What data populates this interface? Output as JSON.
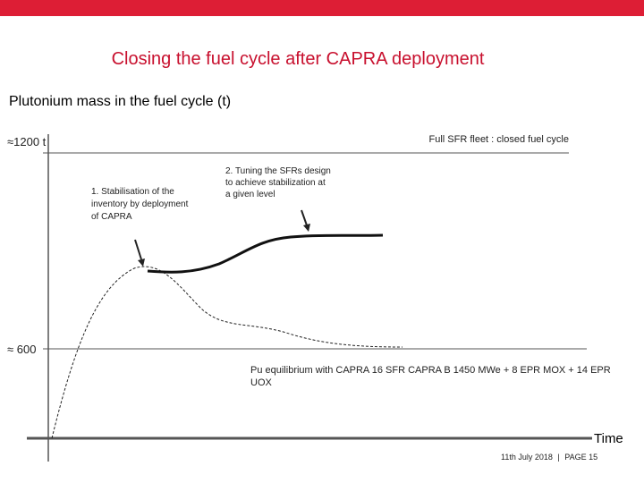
{
  "chart_data": {
    "type": "line",
    "title": "Closing the fuel cycle after CAPRA deployment",
    "ylabel": "Plutonium mass in the fuel cycle (t)",
    "xlabel": "Time",
    "y_ticks": [
      {
        "label": "≈1200 t",
        "value": 1200
      },
      {
        "label": "≈ 600",
        "value": 600
      }
    ],
    "reference_lines": [
      {
        "name": "Full SFR fleet : closed fuel cycle",
        "value": 1200
      },
      {
        "name": "Pu equilibrium with CAPRA  16 SFR CAPRA B 1450 MWe + 8 EPR MOX + 14 EPR UOX",
        "value": 600
      }
    ],
    "annotations": [
      "1. Stabilisation of the inventory by deployment of CAPRA",
      "2. Tuning the SFRs design to achieve stabilization at a given level"
    ],
    "grid": false,
    "legend": "none"
  },
  "footer": {
    "date": "11th July 2018",
    "page": "PAGE 15"
  }
}
